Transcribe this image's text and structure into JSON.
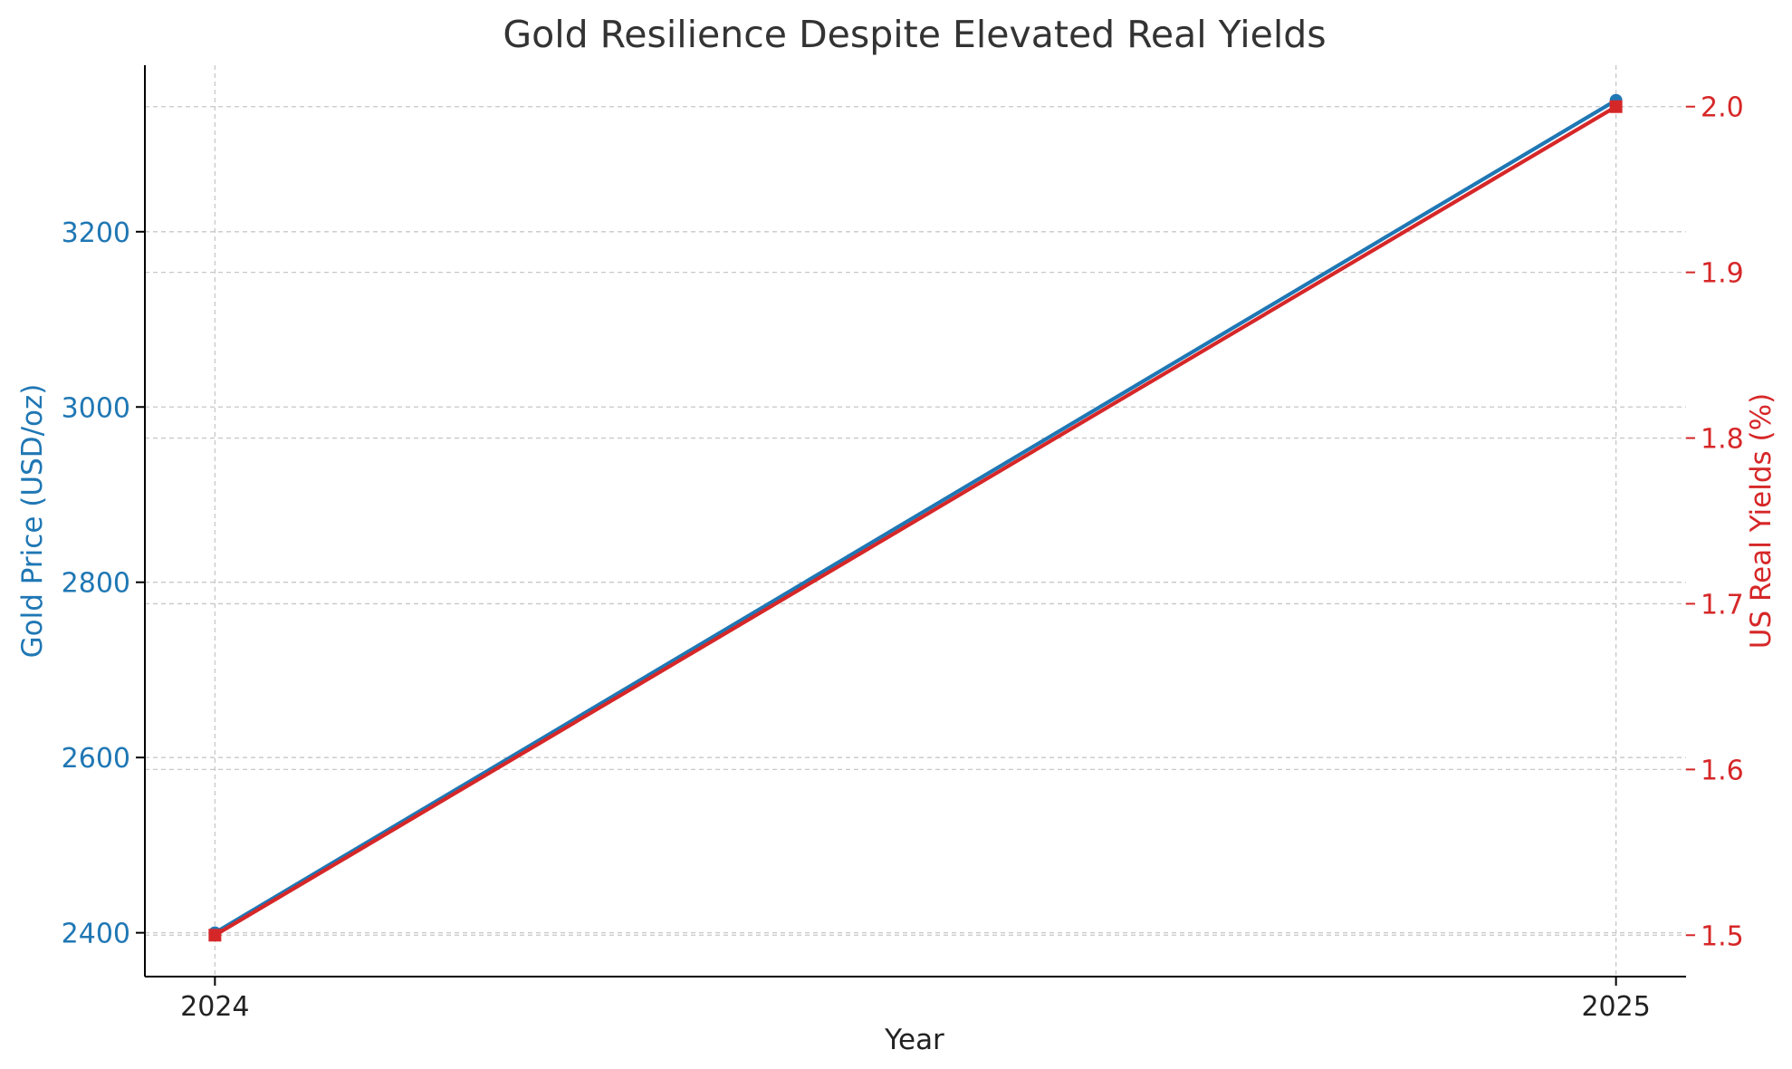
{
  "chart_data": {
    "type": "line",
    "title": "Gold Resilience Despite Elevated Real Yields",
    "xlabel": "Year",
    "ylabel_left": "Gold Price (USD/oz)",
    "ylabel_right": "US Real Yields (%)",
    "categories": [
      "2024",
      "2025"
    ],
    "x": [
      2024,
      2025
    ],
    "xlim": [
      2023.95,
      2025.05
    ],
    "ylim_left": [
      2350,
      3390
    ],
    "ylim_right": [
      1.475,
      2.025
    ],
    "yticks_left": [
      2400,
      2600,
      2800,
      3000,
      3200
    ],
    "yticks_right": [
      1.5,
      1.6,
      1.7,
      1.8,
      1.9,
      2.0
    ],
    "grid": true,
    "legend": "none",
    "series": [
      {
        "axis": "left",
        "values": [
          2400,
          3350
        ],
        "color": "#1f77b4",
        "marker": "circle"
      },
      {
        "axis": "right",
        "values": [
          1.5,
          2.0
        ],
        "color": "#d62728",
        "marker": "square"
      }
    ],
    "colors": {
      "left_axis": "#1f77b4",
      "right_axis": "#d62728",
      "title": "#333333",
      "text": "#222222",
      "grid": "#c8c8c8"
    }
  }
}
